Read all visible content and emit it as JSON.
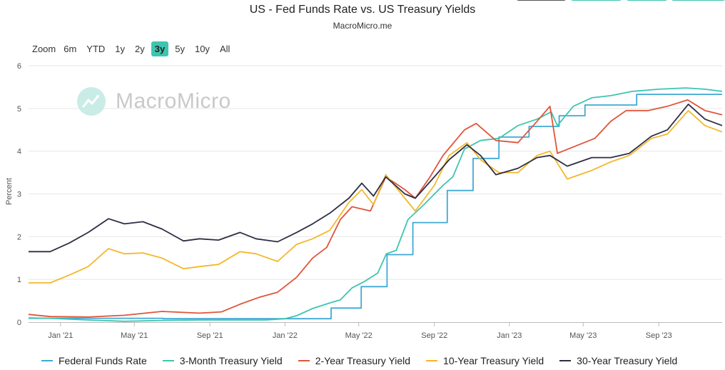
{
  "header": {
    "title": "US - Fed Funds Rate vs. US Treasury Yields",
    "subtitle": "MacroMicro.me"
  },
  "zoom": {
    "label": "Zoom",
    "buttons": [
      "6m",
      "YTD",
      "1y",
      "2y",
      "3y",
      "5y",
      "10y",
      "All"
    ],
    "active": "3y"
  },
  "watermark": {
    "text": "MacroMicro"
  },
  "top_buttons": {
    "colors": [
      "#555555",
      "#3ec5b0",
      "#3ec5b0",
      "#3ec5b0"
    ]
  },
  "chart_data": {
    "type": "line",
    "title": "US - Fed Funds Rate vs. US Treasury Yields",
    "ylabel": "Percent",
    "ylim": [
      0,
      6
    ],
    "yticks": [
      0,
      1,
      2,
      3,
      4,
      5,
      6
    ],
    "xlim": [
      "2020-11-10",
      "2023-12-13"
    ],
    "xticks": [
      {
        "date": "2021-01-01",
        "label": "Jan '21"
      },
      {
        "date": "2021-05-01",
        "label": "May '21"
      },
      {
        "date": "2021-09-01",
        "label": "Sep '21"
      },
      {
        "date": "2022-01-01",
        "label": "Jan '22"
      },
      {
        "date": "2022-05-01",
        "label": "May '22"
      },
      {
        "date": "2022-09-01",
        "label": "Sep '22"
      },
      {
        "date": "2023-01-01",
        "label": "Jan '23"
      },
      {
        "date": "2023-05-01",
        "label": "May '23"
      },
      {
        "date": "2023-09-01",
        "label": "Sep '23"
      }
    ],
    "grid": "horizontal",
    "legend_position": "bottom",
    "series": [
      {
        "name": "Federal Funds Rate",
        "color": "#3fa9d5",
        "step": true,
        "points": [
          [
            "2020-11-10",
            0.09
          ],
          [
            "2021-06-17",
            0.08
          ],
          [
            "2022-03-17",
            0.33
          ],
          [
            "2022-05-05",
            0.83
          ],
          [
            "2022-06-16",
            1.58
          ],
          [
            "2022-07-28",
            2.33
          ],
          [
            "2022-09-22",
            3.08
          ],
          [
            "2022-11-03",
            3.83
          ],
          [
            "2022-12-15",
            4.33
          ],
          [
            "2023-02-02",
            4.58
          ],
          [
            "2023-03-23",
            4.83
          ],
          [
            "2023-05-04",
            5.08
          ],
          [
            "2023-07-27",
            5.33
          ],
          [
            "2023-12-13",
            5.33
          ]
        ]
      },
      {
        "name": "3-Month Treasury Yield",
        "color": "#3ec5b0",
        "points": [
          [
            "2020-11-10",
            0.1
          ],
          [
            "2020-12-15",
            0.09
          ],
          [
            "2021-02-15",
            0.05
          ],
          [
            "2021-04-15",
            0.02
          ],
          [
            "2021-06-15",
            0.04
          ],
          [
            "2021-08-15",
            0.05
          ],
          [
            "2021-10-15",
            0.05
          ],
          [
            "2021-12-01",
            0.05
          ],
          [
            "2022-01-01",
            0.08
          ],
          [
            "2022-01-20",
            0.15
          ],
          [
            "2022-02-15",
            0.32
          ],
          [
            "2022-03-15",
            0.45
          ],
          [
            "2022-04-01",
            0.52
          ],
          [
            "2022-04-20",
            0.8
          ],
          [
            "2022-05-10",
            0.95
          ],
          [
            "2022-06-01",
            1.15
          ],
          [
            "2022-06-15",
            1.6
          ],
          [
            "2022-07-01",
            1.68
          ],
          [
            "2022-07-20",
            2.4
          ],
          [
            "2022-08-15",
            2.75
          ],
          [
            "2022-09-15",
            3.2
          ],
          [
            "2022-10-01",
            3.4
          ],
          [
            "2022-10-20",
            4.05
          ],
          [
            "2022-11-15",
            4.25
          ],
          [
            "2022-12-15",
            4.3
          ],
          [
            "2023-01-15",
            4.6
          ],
          [
            "2023-02-15",
            4.75
          ],
          [
            "2023-03-10",
            4.92
          ],
          [
            "2023-03-20",
            4.6
          ],
          [
            "2023-04-15",
            5.05
          ],
          [
            "2023-05-15",
            5.25
          ],
          [
            "2023-06-15",
            5.3
          ],
          [
            "2023-07-20",
            5.4
          ],
          [
            "2023-09-01",
            5.45
          ],
          [
            "2023-10-15",
            5.48
          ],
          [
            "2023-11-15",
            5.45
          ],
          [
            "2023-12-13",
            5.4
          ]
        ]
      },
      {
        "name": "2-Year Treasury Yield",
        "color": "#e0553a",
        "points": [
          [
            "2020-11-10",
            0.18
          ],
          [
            "2020-12-15",
            0.13
          ],
          [
            "2021-02-15",
            0.12
          ],
          [
            "2021-04-15",
            0.16
          ],
          [
            "2021-06-15",
            0.25
          ],
          [
            "2021-08-15",
            0.21
          ],
          [
            "2021-09-20",
            0.24
          ],
          [
            "2021-10-20",
            0.42
          ],
          [
            "2021-11-20",
            0.58
          ],
          [
            "2021-12-20",
            0.7
          ],
          [
            "2022-01-20",
            1.05
          ],
          [
            "2022-02-15",
            1.5
          ],
          [
            "2022-03-10",
            1.75
          ],
          [
            "2022-04-01",
            2.4
          ],
          [
            "2022-04-20",
            2.7
          ],
          [
            "2022-05-20",
            2.6
          ],
          [
            "2022-06-14",
            3.4
          ],
          [
            "2022-07-15",
            3.1
          ],
          [
            "2022-08-01",
            2.9
          ],
          [
            "2022-08-25",
            3.4
          ],
          [
            "2022-09-15",
            3.9
          ],
          [
            "2022-10-20",
            4.5
          ],
          [
            "2022-11-08",
            4.65
          ],
          [
            "2022-12-10",
            4.25
          ],
          [
            "2023-01-15",
            4.2
          ],
          [
            "2023-02-15",
            4.7
          ],
          [
            "2023-03-08",
            5.05
          ],
          [
            "2023-03-20",
            3.95
          ],
          [
            "2023-04-15",
            4.1
          ],
          [
            "2023-05-20",
            4.3
          ],
          [
            "2023-06-15",
            4.7
          ],
          [
            "2023-07-10",
            4.95
          ],
          [
            "2023-08-15",
            4.95
          ],
          [
            "2023-09-15",
            5.05
          ],
          [
            "2023-10-18",
            5.2
          ],
          [
            "2023-11-15",
            4.95
          ],
          [
            "2023-12-13",
            4.85
          ]
        ]
      },
      {
        "name": "10-Year Treasury Yield",
        "color": "#f3b82b",
        "points": [
          [
            "2020-11-10",
            0.92
          ],
          [
            "2020-12-15",
            0.92
          ],
          [
            "2021-01-15",
            1.1
          ],
          [
            "2021-02-15",
            1.3
          ],
          [
            "2021-03-20",
            1.72
          ],
          [
            "2021-04-15",
            1.6
          ],
          [
            "2021-05-15",
            1.62
          ],
          [
            "2021-06-15",
            1.5
          ],
          [
            "2021-07-20",
            1.25
          ],
          [
            "2021-08-15",
            1.3
          ],
          [
            "2021-09-15",
            1.35
          ],
          [
            "2021-10-20",
            1.65
          ],
          [
            "2021-11-15",
            1.6
          ],
          [
            "2021-12-20",
            1.42
          ],
          [
            "2022-01-20",
            1.82
          ],
          [
            "2022-02-15",
            1.95
          ],
          [
            "2022-03-15",
            2.15
          ],
          [
            "2022-04-15",
            2.8
          ],
          [
            "2022-05-06",
            3.1
          ],
          [
            "2022-05-25",
            2.75
          ],
          [
            "2022-06-14",
            3.45
          ],
          [
            "2022-07-15",
            2.9
          ],
          [
            "2022-08-01",
            2.6
          ],
          [
            "2022-09-01",
            3.2
          ],
          [
            "2022-09-25",
            3.9
          ],
          [
            "2022-10-24",
            4.2
          ],
          [
            "2022-11-15",
            3.8
          ],
          [
            "2022-12-15",
            3.5
          ],
          [
            "2023-01-15",
            3.5
          ],
          [
            "2023-02-15",
            3.9
          ],
          [
            "2023-03-08",
            4.0
          ],
          [
            "2023-04-05",
            3.35
          ],
          [
            "2023-05-15",
            3.55
          ],
          [
            "2023-06-15",
            3.75
          ],
          [
            "2023-07-15",
            3.9
          ],
          [
            "2023-08-20",
            4.3
          ],
          [
            "2023-09-15",
            4.4
          ],
          [
            "2023-10-19",
            4.95
          ],
          [
            "2023-11-15",
            4.6
          ],
          [
            "2023-12-13",
            4.45
          ]
        ]
      },
      {
        "name": "30-Year Treasury Yield",
        "color": "#2e2e45",
        "points": [
          [
            "2020-11-10",
            1.65
          ],
          [
            "2020-12-15",
            1.65
          ],
          [
            "2021-01-15",
            1.85
          ],
          [
            "2021-02-15",
            2.1
          ],
          [
            "2021-03-20",
            2.42
          ],
          [
            "2021-04-15",
            2.3
          ],
          [
            "2021-05-15",
            2.35
          ],
          [
            "2021-06-15",
            2.18
          ],
          [
            "2021-07-20",
            1.9
          ],
          [
            "2021-08-15",
            1.95
          ],
          [
            "2021-09-15",
            1.92
          ],
          [
            "2021-10-20",
            2.1
          ],
          [
            "2021-11-15",
            1.95
          ],
          [
            "2021-12-20",
            1.88
          ],
          [
            "2022-01-20",
            2.1
          ],
          [
            "2022-02-15",
            2.3
          ],
          [
            "2022-03-15",
            2.55
          ],
          [
            "2022-04-15",
            2.9
          ],
          [
            "2022-05-06",
            3.25
          ],
          [
            "2022-05-25",
            2.95
          ],
          [
            "2022-06-14",
            3.4
          ],
          [
            "2022-07-15",
            3.0
          ],
          [
            "2022-08-01",
            2.9
          ],
          [
            "2022-09-01",
            3.4
          ],
          [
            "2022-09-25",
            3.8
          ],
          [
            "2022-10-24",
            4.15
          ],
          [
            "2022-11-15",
            3.9
          ],
          [
            "2022-12-10",
            3.45
          ],
          [
            "2023-01-15",
            3.6
          ],
          [
            "2023-02-15",
            3.85
          ],
          [
            "2023-03-08",
            3.9
          ],
          [
            "2023-04-05",
            3.65
          ],
          [
            "2023-05-15",
            3.85
          ],
          [
            "2023-06-15",
            3.85
          ],
          [
            "2023-07-15",
            3.95
          ],
          [
            "2023-08-20",
            4.35
          ],
          [
            "2023-09-15",
            4.5
          ],
          [
            "2023-10-19",
            5.1
          ],
          [
            "2023-11-15",
            4.75
          ],
          [
            "2023-12-13",
            4.6
          ]
        ]
      }
    ]
  }
}
